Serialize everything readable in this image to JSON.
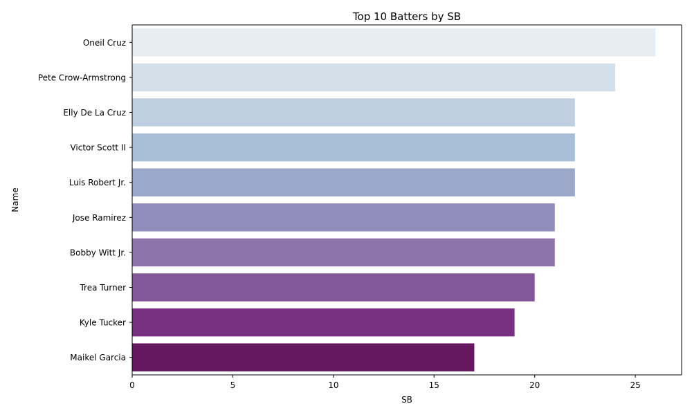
{
  "chart_data": {
    "type": "bar",
    "orientation": "horizontal",
    "title": "Top 10 Batters by SB",
    "xlabel": "SB",
    "ylabel": "Name",
    "categories": [
      "Oneil Cruz",
      "Pete Crow-Armstrong",
      "Elly De La Cruz",
      "Victor Scott II",
      "Luis Robert Jr.",
      "Jose Ramirez",
      "Bobby Witt Jr.",
      "Trea Turner",
      "Kyle Tucker",
      "Maikel Garcia"
    ],
    "values": [
      26,
      24,
      22,
      22,
      22,
      21,
      21,
      20,
      19,
      17
    ],
    "xlim": [
      0,
      27.3
    ],
    "xticks": [
      0,
      5,
      10,
      15,
      20,
      25
    ],
    "grid": false,
    "legend": "none",
    "colors": [
      "#e7eef3",
      "#d3e0ea",
      "#bfcfe1",
      "#a9bfd8",
      "#9ba8ca",
      "#928ebb",
      "#8c73aa",
      "#84569a",
      "#77307f",
      "#66185f"
    ]
  }
}
